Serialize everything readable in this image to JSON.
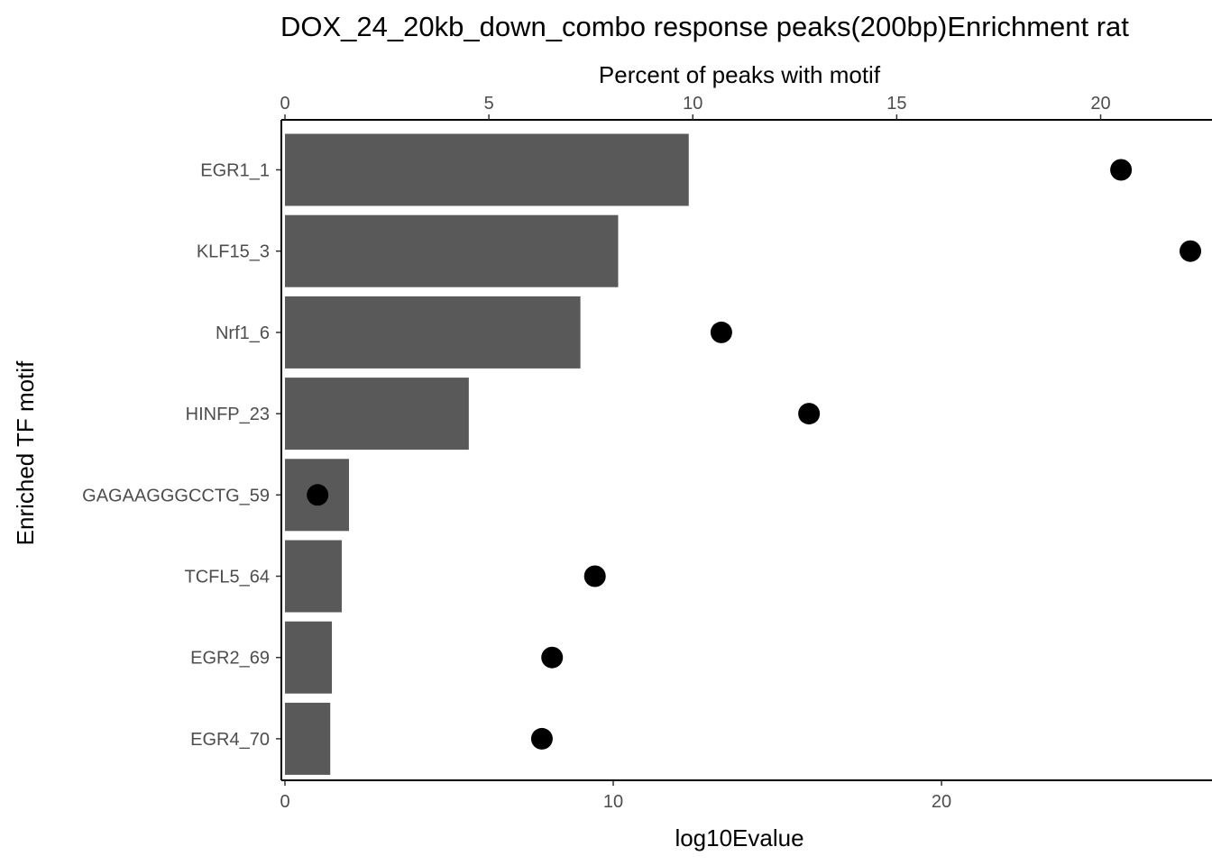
{
  "chart_data": {
    "type": "bar",
    "title": "DOX_24_20kb_down_combo response peaks(200bp)Enrichment rat",
    "ylabel": "Enriched TF motif",
    "xlabel": "log10Evalue",
    "x2label": "Percent of peaks with motif",
    "categories": [
      "EGR1_1",
      "KLF15_3",
      "Nrf1_6",
      "HINFP_23",
      "GAGAAGGGCCTG_59",
      "TCFL5_64",
      "EGR2_69",
      "EGR4_70"
    ],
    "series": [
      {
        "kind": "bar",
        "axis": "bottom",
        "color": "#595959",
        "values": [
          12.3,
          10.15,
          9.0,
          5.6,
          1.95,
          1.73,
          1.43,
          1.38
        ]
      },
      {
        "kind": "point",
        "axis": "top",
        "color": "#000000",
        "values": [
          20.5,
          22.2,
          10.7,
          12.85,
          0.8,
          7.6,
          6.55,
          6.3
        ]
      }
    ],
    "xlim": [
      0,
      27.8
    ],
    "x2lim": [
      0,
      22.2
    ],
    "xticks": [
      0,
      10,
      20
    ],
    "x2ticks": [
      0,
      5,
      10,
      15,
      20
    ],
    "grid": false
  }
}
